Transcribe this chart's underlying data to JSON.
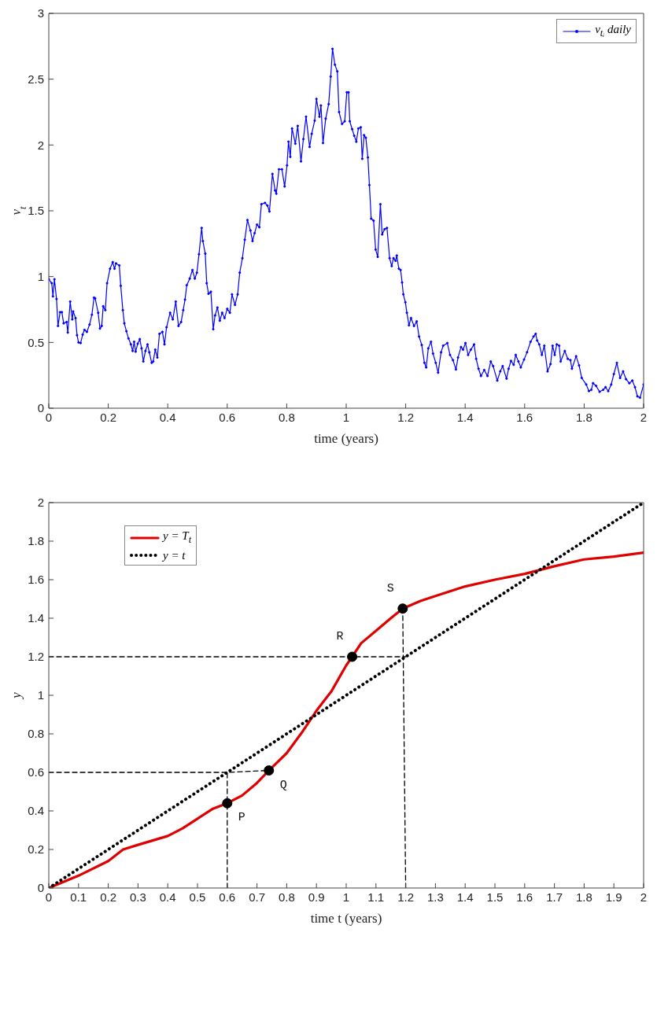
{
  "chart_data": [
    {
      "type": "line",
      "xlabel": "time (years)",
      "ylabel": "ν$_{t}$",
      "xlim": [
        0,
        2
      ],
      "ylim": [
        0,
        3
      ],
      "xticks": [
        0,
        0.2,
        0.4,
        0.6,
        0.8,
        1,
        1.2,
        1.4,
        1.6,
        1.8,
        2
      ],
      "yticks": [
        0,
        0.5,
        1,
        1.5,
        2,
        2.5,
        3
      ],
      "legend": "top right",
      "marker": "circle",
      "line_style": "solid",
      "x": [
        0,
        0.01,
        0.014,
        0.019,
        0.026,
        0.031,
        0.038,
        0.044,
        0.05,
        0.06,
        0.064,
        0.072,
        0.079,
        0.082,
        0.09,
        0.095,
        0.1,
        0.107,
        0.114,
        0.12,
        0.128,
        0.137,
        0.145,
        0.152,
        0.156,
        0.166,
        0.172,
        0.178,
        0.183,
        0.19,
        0.196,
        0.206,
        0.215,
        0.221,
        0.226,
        0.237,
        0.242,
        0.249,
        0.254,
        0.261,
        0.268,
        0.276,
        0.282,
        0.287,
        0.292,
        0.299,
        0.306,
        0.312,
        0.318,
        0.325,
        0.332,
        0.338,
        0.346,
        0.351,
        0.358,
        0.365,
        0.372,
        0.382,
        0.389,
        0.396,
        0.408,
        0.417,
        0.427,
        0.436,
        0.445,
        0.452,
        0.458,
        0.464,
        0.474,
        0.483,
        0.491,
        0.498,
        0.505,
        0.514,
        0.518,
        0.526,
        0.531,
        0.537,
        0.545,
        0.553,
        0.559,
        0.567,
        0.575,
        0.583,
        0.591,
        0.6,
        0.609,
        0.616,
        0.626,
        0.635,
        0.642,
        0.651,
        0.659,
        0.668,
        0.678,
        0.685,
        0.692,
        0.7,
        0.708,
        0.715,
        0.727,
        0.735,
        0.742,
        0.752,
        0.761,
        0.765,
        0.774,
        0.784,
        0.793,
        0.801,
        0.806,
        0.812,
        0.818,
        0.829,
        0.837,
        0.848,
        0.856,
        0.865,
        0.877,
        0.884,
        0.894,
        0.9,
        0.91,
        0.915,
        0.922,
        0.931,
        0.941,
        0.948,
        0.954,
        0.962,
        0.97,
        0.976,
        0.986,
        0.995,
        1.002,
        1.008,
        1.012,
        1.02,
        1.027,
        1.034,
        1.041,
        1.049,
        1.054,
        1.06,
        1.066,
        1.073,
        1.078,
        1.084,
        1.092,
        1.099,
        1.106,
        1.115,
        1.121,
        1.129,
        1.137,
        1.146,
        1.153,
        1.159,
        1.166,
        1.17,
        1.177,
        1.183,
        1.188,
        1.192,
        1.199,
        1.204,
        1.211,
        1.218,
        1.228,
        1.237,
        1.245,
        1.254,
        1.263,
        1.269,
        1.276,
        1.285,
        1.292,
        1.301,
        1.309,
        1.319,
        1.326,
        1.34,
        1.349,
        1.359,
        1.369,
        1.376,
        1.386,
        1.393,
        1.401,
        1.41,
        1.419,
        1.43,
        1.437,
        1.445,
        1.453,
        1.464,
        1.475,
        1.486,
        1.494,
        1.508,
        1.518,
        1.526,
        1.539,
        1.546,
        1.554,
        1.563,
        1.57,
        1.579,
        1.587,
        1.598,
        1.608,
        1.62,
        1.63,
        1.637,
        1.642,
        1.649,
        1.658,
        1.666,
        1.677,
        1.687,
        1.694,
        1.701,
        1.708,
        1.716,
        1.721,
        1.735,
        1.745,
        1.754,
        1.759,
        1.773,
        1.783,
        1.792,
        1.807,
        1.816,
        1.824,
        1.83,
        1.84,
        1.852,
        1.864,
        1.872,
        1.881,
        1.891,
        1.9,
        1.91,
        1.921,
        1.931,
        1.941,
        1.952,
        1.962,
        1.971,
        1.979,
        1.988,
        2
      ],
      "series": [
        {
          "name": "ν$_{tᵢ}$ daily",
          "color": "#0000ff",
          "values": [
            0.98,
            0.95,
            0.85,
            0.98,
            0.83,
            0.625,
            0.73,
            0.73,
            0.645,
            0.655,
            0.575,
            0.81,
            0.675,
            0.735,
            0.685,
            0.555,
            0.5,
            0.495,
            0.56,
            0.595,
            0.58,
            0.635,
            0.71,
            0.84,
            0.835,
            0.725,
            0.605,
            0.625,
            0.775,
            0.745,
            0.95,
            1.06,
            1.11,
            1.06,
            1.1,
            1.085,
            0.93,
            0.745,
            0.645,
            0.585,
            0.53,
            0.485,
            0.435,
            0.505,
            0.43,
            0.49,
            0.525,
            0.455,
            0.355,
            0.435,
            0.485,
            0.425,
            0.345,
            0.355,
            0.445,
            0.385,
            0.565,
            0.58,
            0.485,
            0.615,
            0.725,
            0.675,
            0.81,
            0.625,
            0.655,
            0.745,
            0.825,
            0.935,
            0.985,
            1.05,
            0.985,
            1.03,
            1.17,
            1.37,
            1.27,
            1.175,
            0.95,
            0.87,
            0.885,
            0.6,
            0.705,
            0.765,
            0.665,
            0.725,
            0.685,
            0.755,
            0.725,
            0.865,
            0.785,
            0.865,
            1.03,
            1.14,
            1.28,
            1.43,
            1.35,
            1.27,
            1.33,
            1.395,
            1.375,
            1.55,
            1.56,
            1.54,
            1.495,
            1.78,
            1.655,
            1.63,
            1.815,
            1.815,
            1.685,
            1.845,
            2.025,
            1.91,
            2.125,
            2.01,
            2.145,
            1.875,
            2.045,
            2.215,
            1.985,
            2.085,
            2.185,
            2.35,
            2.215,
            2.3,
            2.015,
            2.2,
            2.31,
            2.52,
            2.73,
            2.61,
            2.56,
            2.25,
            2.16,
            2.18,
            2.4,
            2.4,
            2.18,
            2.12,
            2.07,
            2.025,
            2.125,
            2.135,
            1.895,
            2.075,
            2.055,
            1.905,
            1.695,
            1.44,
            1.425,
            1.205,
            1.15,
            1.55,
            1.32,
            1.36,
            1.37,
            1.14,
            1.08,
            1.14,
            1.12,
            1.16,
            1.06,
            1.05,
            0.955,
            0.865,
            0.805,
            0.725,
            0.63,
            0.685,
            0.625,
            0.66,
            0.545,
            0.48,
            0.345,
            0.31,
            0.455,
            0.505,
            0.415,
            0.345,
            0.27,
            0.425,
            0.475,
            0.495,
            0.405,
            0.365,
            0.295,
            0.385,
            0.465,
            0.445,
            0.495,
            0.405,
            0.445,
            0.485,
            0.375,
            0.3,
            0.245,
            0.29,
            0.245,
            0.355,
            0.32,
            0.21,
            0.28,
            0.32,
            0.225,
            0.3,
            0.36,
            0.33,
            0.405,
            0.355,
            0.31,
            0.37,
            0.425,
            0.505,
            0.545,
            0.565,
            0.515,
            0.485,
            0.405,
            0.475,
            0.28,
            0.335,
            0.475,
            0.405,
            0.485,
            0.475,
            0.355,
            0.435,
            0.375,
            0.365,
            0.3,
            0.395,
            0.325,
            0.23,
            0.18,
            0.13,
            0.14,
            0.19,
            0.17,
            0.125,
            0.14,
            0.16,
            0.13,
            0.18,
            0.26,
            0.345,
            0.23,
            0.28,
            0.22,
            0.19,
            0.21,
            0.16,
            0.09,
            0.08,
            0.18
          ]
        }
      ]
    },
    {
      "type": "line",
      "xlabel": "time t (years)",
      "ylabel": "y",
      "xlim": [
        0,
        2
      ],
      "ylim": [
        0,
        2
      ],
      "xticks": [
        0,
        0.1,
        0.2,
        0.3,
        0.4,
        0.5,
        0.6,
        0.7,
        0.8,
        0.9,
        1,
        1.1,
        1.2,
        1.3,
        1.4,
        1.5,
        1.6,
        1.7,
        1.8,
        1.9,
        2
      ],
      "yticks": [
        0,
        0.2,
        0.4,
        0.6,
        0.8,
        1,
        1.2,
        1.4,
        1.6,
        1.8,
        2
      ],
      "legend": "top left",
      "annotations": [
        {
          "text": "P",
          "x": 0.6,
          "y": 0.44
        },
        {
          "text": "Q",
          "x": 0.74,
          "y": 0.61
        },
        {
          "text": "R",
          "x": 1.02,
          "y": 1.2
        },
        {
          "text": "S",
          "x": 1.19,
          "y": 1.45
        }
      ],
      "series": [
        {
          "name": "y = T$_{t}$",
          "color": "#e00000",
          "line_style": "solid",
          "x": [
            0,
            0.1,
            0.2,
            0.25,
            0.3,
            0.4,
            0.45,
            0.5,
            0.55,
            0.6,
            0.65,
            0.7,
            0.74,
            0.8,
            0.85,
            0.9,
            0.95,
            1,
            1.02,
            1.05,
            1.1,
            1.15,
            1.19,
            1.25,
            1.3,
            1.4,
            1.5,
            1.6,
            1.7,
            1.8,
            1.9,
            2
          ],
          "values": [
            0,
            0.064,
            0.14,
            0.2,
            0.224,
            0.27,
            0.31,
            0.36,
            0.41,
            0.44,
            0.48,
            0.545,
            0.61,
            0.7,
            0.805,
            0.92,
            1.02,
            1.155,
            1.2,
            1.27,
            1.335,
            1.4,
            1.45,
            1.49,
            1.515,
            1.565,
            1.6,
            1.63,
            1.67,
            1.705,
            1.72,
            1.74
          ]
        },
        {
          "name": "y = t",
          "color": "#000000",
          "line_style": "dotted",
          "x": [
            0,
            2
          ],
          "values": [
            0,
            2
          ]
        },
        {
          "color": "#000000",
          "line_style": "dashed",
          "x": [
            0,
            0.6,
            0.74
          ],
          "values": [
            0.6,
            0.6,
            0.61
          ]
        },
        {
          "color": "#000000",
          "line_style": "dashed",
          "x": [
            0.6,
            0.6
          ],
          "values": [
            0,
            0.6
          ]
        },
        {
          "color": "#000000",
          "line_style": "dashed",
          "x": [
            0,
            1.2
          ],
          "values": [
            1.2,
            1.2
          ]
        },
        {
          "color": "#000000",
          "line_style": "dashed",
          "x": [
            1.2,
            1.19
          ],
          "values": [
            0,
            1.45
          ]
        },
        {
          "type": "scatter",
          "color": "#000000",
          "marker": "circle",
          "x": [
            0.6,
            0.74,
            1.02,
            1.19
          ],
          "values": [
            0.44,
            0.61,
            1.2,
            1.45
          ]
        }
      ]
    }
  ]
}
